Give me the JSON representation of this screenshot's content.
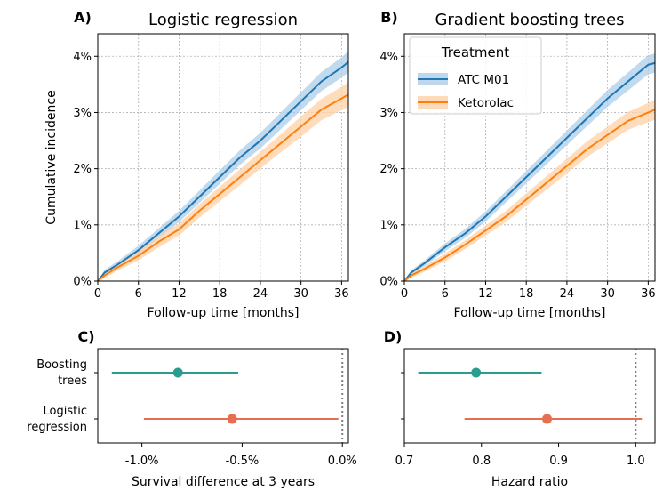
{
  "chart_data": [
    {
      "panel": "A)",
      "type": "line",
      "title": "Logistic regression",
      "xlabel": "Follow-up time [months]",
      "ylabel": "Cumulative incidence",
      "xlim": [
        0,
        37
      ],
      "ylim": [
        0,
        4.4
      ],
      "xticks": [
        "0",
        "6",
        "12",
        "18",
        "24",
        "30",
        "36"
      ],
      "yticks": [
        "0%",
        "1%",
        "2%",
        "3%",
        "4%"
      ],
      "grid": true,
      "series": [
        {
          "name": "ATC M01",
          "color": "#1f77b4",
          "band_color": "#aecde8",
          "x": [
            0,
            1,
            3,
            6,
            9,
            12,
            15,
            18,
            21,
            24,
            27,
            30,
            33,
            36,
            37
          ],
          "y": [
            0,
            0.15,
            0.3,
            0.55,
            0.85,
            1.15,
            1.5,
            1.85,
            2.2,
            2.5,
            2.85,
            3.2,
            3.55,
            3.8,
            3.9
          ],
          "band_halfwidth": [
            0,
            0.05,
            0.06,
            0.08,
            0.09,
            0.1,
            0.11,
            0.12,
            0.13,
            0.14,
            0.15,
            0.16,
            0.17,
            0.18,
            0.19
          ]
        },
        {
          "name": "Ketorolac",
          "color": "#ff7f0e",
          "band_color": "#ffd1a6",
          "x": [
            0,
            1,
            3,
            6,
            9,
            12,
            15,
            18,
            21,
            24,
            27,
            30,
            33,
            36,
            37
          ],
          "y": [
            0,
            0.1,
            0.25,
            0.45,
            0.7,
            0.92,
            1.25,
            1.55,
            1.85,
            2.15,
            2.45,
            2.75,
            3.05,
            3.25,
            3.32
          ],
          "band_halfwidth": [
            0,
            0.05,
            0.06,
            0.08,
            0.1,
            0.11,
            0.12,
            0.13,
            0.14,
            0.15,
            0.16,
            0.18,
            0.19,
            0.21,
            0.22
          ]
        }
      ]
    },
    {
      "panel": "B)",
      "type": "line",
      "title": "Gradient boosting trees",
      "xlabel": "Follow-up time [months]",
      "ylabel": "",
      "xlim": [
        0,
        37
      ],
      "ylim": [
        0,
        4.4
      ],
      "xticks": [
        "0",
        "6",
        "12",
        "18",
        "24",
        "30",
        "36"
      ],
      "yticks": [
        "0%",
        "1%",
        "2%",
        "3%",
        "4%"
      ],
      "grid": true,
      "legend": {
        "title": "Treatment",
        "placement": "top-left"
      },
      "series": [
        {
          "name": "ATC M01",
          "color": "#1f77b4",
          "band_color": "#aecde8",
          "x": [
            0,
            1,
            3,
            6,
            9,
            12,
            15,
            18,
            21,
            24,
            27,
            30,
            33,
            36,
            37
          ],
          "y": [
            0,
            0.15,
            0.32,
            0.6,
            0.85,
            1.15,
            1.5,
            1.85,
            2.2,
            2.55,
            2.9,
            3.25,
            3.55,
            3.85,
            3.88
          ],
          "band_halfwidth": [
            0,
            0.04,
            0.05,
            0.07,
            0.08,
            0.09,
            0.1,
            0.11,
            0.12,
            0.13,
            0.14,
            0.15,
            0.16,
            0.17,
            0.17
          ]
        },
        {
          "name": "Ketorolac",
          "color": "#ff7f0e",
          "band_color": "#ffd1a6",
          "x": [
            0,
            1,
            3,
            6,
            9,
            12,
            15,
            18,
            21,
            24,
            27,
            30,
            33,
            36,
            37
          ],
          "y": [
            0,
            0.1,
            0.22,
            0.42,
            0.65,
            0.9,
            1.15,
            1.45,
            1.75,
            2.05,
            2.35,
            2.6,
            2.85,
            3.0,
            3.05
          ],
          "band_halfwidth": [
            0,
            0.04,
            0.05,
            0.07,
            0.08,
            0.09,
            0.1,
            0.11,
            0.12,
            0.13,
            0.14,
            0.15,
            0.16,
            0.17,
            0.18
          ]
        }
      ]
    },
    {
      "panel": "C)",
      "type": "scatter",
      "title": "",
      "xlabel": "Survival difference at 3 years",
      "ylabel": "",
      "xlim": [
        -1.22,
        0.03
      ],
      "xticks": [
        {
          "value": -1.0,
          "label": "-1.0%"
        },
        {
          "value": -0.5,
          "label": "-0.5%"
        },
        {
          "value": 0.0,
          "label": "0.0%"
        }
      ],
      "categories": [
        "Boosting trees",
        "Logistic regression"
      ],
      "category_lines": [
        [
          "Boosting",
          "trees"
        ],
        [
          "Logistic",
          "regression"
        ]
      ],
      "reference_line": 0.0,
      "points": [
        {
          "category": "Boosting trees",
          "estimate": -0.82,
          "lower": -1.15,
          "upper": -0.52,
          "color": "#2a9d8f"
        },
        {
          "category": "Logistic regression",
          "estimate": -0.55,
          "lower": -0.99,
          "upper": -0.02,
          "color": "#e76f51"
        }
      ]
    },
    {
      "panel": "D)",
      "type": "scatter",
      "title": "",
      "xlabel": "Hazard ratio",
      "ylabel": "",
      "xlim": [
        0.7,
        1.025
      ],
      "xticks": [
        {
          "value": 0.7,
          "label": "0.7"
        },
        {
          "value": 0.8,
          "label": "0.8"
        },
        {
          "value": 0.9,
          "label": "0.9"
        },
        {
          "value": 1.0,
          "label": "1.0"
        }
      ],
      "categories": [
        "Boosting trees",
        "Logistic regression"
      ],
      "reference_line": 1.0,
      "points": [
        {
          "category": "Boosting trees",
          "estimate": 0.793,
          "lower": 0.718,
          "upper": 0.878,
          "color": "#2a9d8f"
        },
        {
          "category": "Logistic regression",
          "estimate": 0.885,
          "lower": 0.778,
          "upper": 1.008,
          "color": "#e76f51"
        }
      ]
    }
  ]
}
